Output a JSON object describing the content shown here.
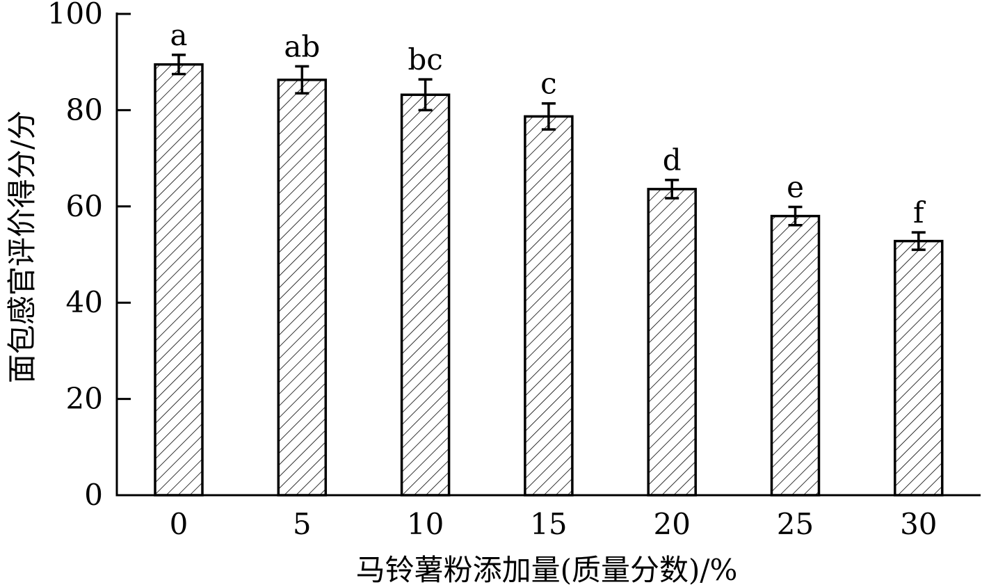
{
  "chart_data": {
    "type": "bar",
    "categories": [
      "0",
      "5",
      "10",
      "15",
      "20",
      "25",
      "30"
    ],
    "series": [
      {
        "values": [
          89.5,
          86.3,
          83.2,
          78.7,
          63.6,
          58.0,
          52.8
        ],
        "errors": [
          2.0,
          2.8,
          3.2,
          2.7,
          1.9,
          1.9,
          1.8
        ],
        "significance": [
          "a",
          "ab",
          "bc",
          "c",
          "d",
          "e",
          "f"
        ]
      }
    ],
    "xlabel": "马铃薯粉添加量(质量分数)/%",
    "ylabel": "面包感官评价得分/分",
    "ylim": [
      0,
      100
    ],
    "yticks": [
      0,
      20,
      40,
      60,
      80,
      100
    ],
    "bar_fill": "hatched",
    "bar_color": "#000000",
    "grid": false,
    "legend": "none"
  }
}
